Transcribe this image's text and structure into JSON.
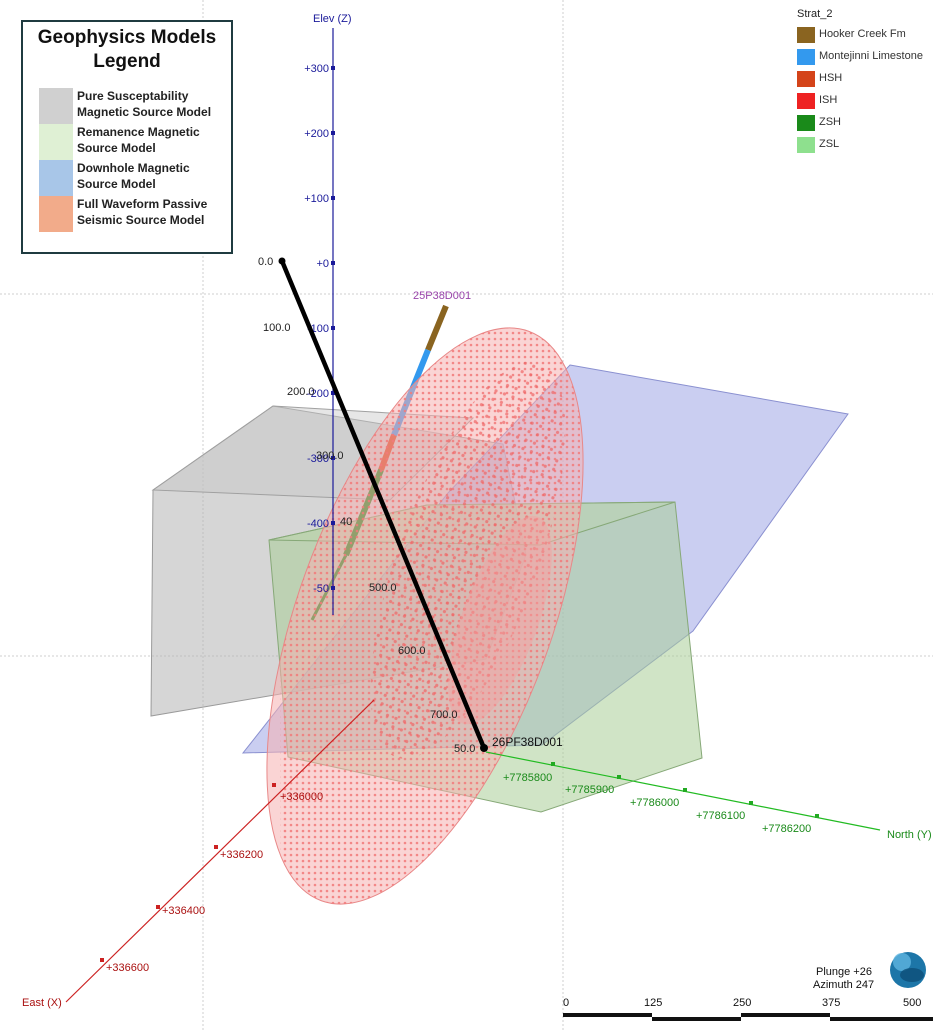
{
  "legend": {
    "title": "Geophysics Models Legend",
    "items": [
      {
        "label": "Pure Susceptability Magnetic  Source Model",
        "color": "#d0d0d0"
      },
      {
        "label": "Remanence Magnetic Source Model",
        "color": "#dff0d4"
      },
      {
        "label": "Downhole Magnetic Source Model",
        "color": "#a8c6e8"
      },
      {
        "label": "Full Waveform Passive Seismic Source Model",
        "color": "#f2ab8a"
      }
    ]
  },
  "strat": {
    "title": "Strat_2",
    "items": [
      {
        "label": "Hooker Creek Fm",
        "color": "#8a6420"
      },
      {
        "label": "Montejinni Limestone",
        "color": "#3399ee"
      },
      {
        "label": "HSH",
        "color": "#d4441a"
      },
      {
        "label": "ISH",
        "color": "#ee2222"
      },
      {
        "label": "ZSH",
        "color": "#1a8a1a"
      },
      {
        "label": "ZSL",
        "color": "#8ee08e"
      }
    ]
  },
  "axes": {
    "z": {
      "label": "Elev (Z)",
      "ticks": [
        "+300",
        "+200",
        "+100",
        "+0",
        "-100",
        "-200",
        "-300",
        "-400",
        "-50"
      ]
    },
    "x": {
      "label": "East (X)",
      "ticks": [
        "+336000",
        "+336200",
        "+336400",
        "+336600"
      ]
    },
    "y": {
      "label": "North (Y)",
      "ticks": [
        "+7785800",
        "+7785900",
        "+7786000",
        "+7786100",
        "+7786200"
      ]
    }
  },
  "drillholes": {
    "hole_a": {
      "label": "26PF38D001",
      "depths": [
        "0.0",
        "100.0",
        "200.0",
        "300.0",
        "40",
        "500.0",
        "600.0",
        "700.0",
        "50.0"
      ]
    },
    "hole_b": {
      "label": "25P38D001"
    }
  },
  "orientation": {
    "plunge": "Plunge +26",
    "azimuth": "Azimuth 247"
  },
  "scale_bar": {
    "ticks": [
      "0",
      "125",
      "250",
      "375",
      "500"
    ]
  },
  "colors": {
    "z_axis": "#1a1a9a",
    "x_axis": "#cc2222",
    "y_axis": "#22aa22",
    "ellipsoid": "#f08080",
    "hole": "#000000"
  }
}
